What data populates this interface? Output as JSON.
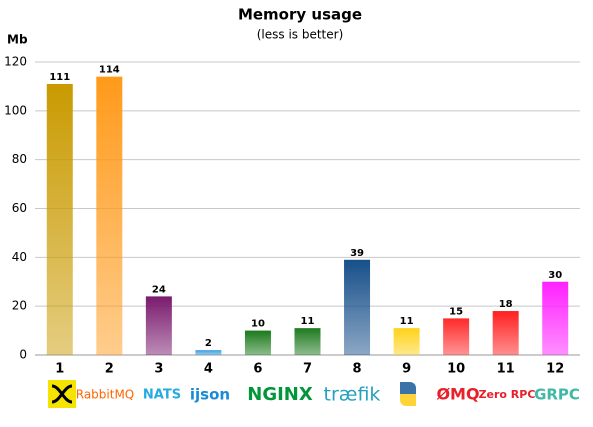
{
  "chart_data": {
    "type": "bar",
    "title": "Memory usage",
    "subtitle": "(less is better)",
    "y_label": "Mb",
    "categories": [
      "1",
      "2",
      "3",
      "4",
      "6",
      "7",
      "8",
      "9",
      "10",
      "11",
      "12"
    ],
    "values": [
      111,
      114,
      24,
      2,
      10,
      11,
      39,
      11,
      15,
      18,
      30
    ],
    "colors": [
      "#c99a00",
      "#ff9a1a",
      "#7a1a6e",
      "#3a9ee0",
      "#1a7a1a",
      "#1f7a1f",
      "#174f8a",
      "#ffd21a",
      "#ff2a2a",
      "#ff2020",
      "#ff20ff"
    ],
    "ylim": [
      0,
      120
    ],
    "yticks": [
      0,
      20,
      40,
      60,
      80,
      100,
      120
    ],
    "grid": true,
    "logos": [
      "RabbitMQ",
      "NATS",
      "ijson",
      "NGINX",
      "træfik",
      "ØMQ",
      "Zero RPC",
      "GRPC"
    ]
  }
}
